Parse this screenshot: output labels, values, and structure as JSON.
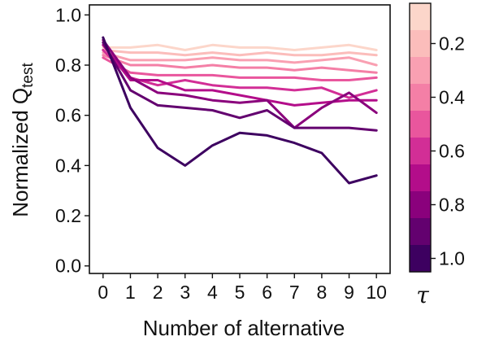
{
  "chart_data": {
    "type": "line",
    "title": "",
    "xlabel": "Number of alternative",
    "ylabel": "Normalized Q",
    "ylabel_subscript": "test",
    "x": [
      0,
      1,
      2,
      3,
      4,
      5,
      6,
      7,
      8,
      9,
      10
    ],
    "xlim": [
      -0.5,
      10.5
    ],
    "ylim": [
      -0.03,
      1.04
    ],
    "yticks": [
      0.0,
      0.2,
      0.4,
      0.6,
      0.8,
      1.0
    ],
    "ytick_labels": [
      "0.0",
      "0.2",
      "0.4",
      "0.6",
      "0.8",
      "1.0"
    ],
    "xtick_labels": [
      "0",
      "1",
      "2",
      "3",
      "4",
      "5",
      "6",
      "7",
      "8",
      "9",
      "10"
    ],
    "grid": false,
    "colorbar": {
      "label": "τ",
      "range": [
        0.05,
        1.05
      ],
      "ticks": [
        0.2,
        0.4,
        0.6,
        0.8,
        1.0
      ],
      "tick_labels": [
        "0.2",
        "0.4",
        "0.6",
        "0.8",
        "1.0"
      ],
      "levels": [
        0.1,
        0.2,
        0.3,
        0.4,
        0.5,
        0.6,
        0.7,
        0.8,
        0.9,
        1.0
      ],
      "colors": [
        "#fcd6ca",
        "#fbbdbb",
        "#f9a0b2",
        "#f47fa6",
        "#e9569d",
        "#d22e96",
        "#b30d8a",
        "#8a017c",
        "#63016f",
        "#3d0060"
      ]
    },
    "series": [
      {
        "tau": 0.1,
        "color": "#fcd6ca",
        "values": [
          0.87,
          0.87,
          0.88,
          0.86,
          0.88,
          0.87,
          0.87,
          0.86,
          0.87,
          0.88,
          0.86
        ]
      },
      {
        "tau": 0.2,
        "color": "#fbbdbb",
        "values": [
          0.86,
          0.85,
          0.85,
          0.84,
          0.85,
          0.84,
          0.85,
          0.84,
          0.84,
          0.85,
          0.84
        ]
      },
      {
        "tau": 0.3,
        "color": "#f9a0b2",
        "values": [
          0.85,
          0.82,
          0.82,
          0.82,
          0.83,
          0.82,
          0.82,
          0.81,
          0.82,
          0.83,
          0.8
        ]
      },
      {
        "tau": 0.4,
        "color": "#f47fa6",
        "values": [
          0.84,
          0.8,
          0.8,
          0.79,
          0.8,
          0.79,
          0.79,
          0.78,
          0.79,
          0.78,
          0.77
        ]
      },
      {
        "tau": 0.5,
        "color": "#e9569d",
        "values": [
          0.83,
          0.77,
          0.76,
          0.76,
          0.76,
          0.75,
          0.75,
          0.75,
          0.74,
          0.74,
          0.75
        ]
      },
      {
        "tau": 0.6,
        "color": "#d22e96",
        "values": [
          0.86,
          0.75,
          0.72,
          0.74,
          0.72,
          0.71,
          0.71,
          0.7,
          0.71,
          0.67,
          0.7
        ]
      },
      {
        "tau": 0.7,
        "color": "#b30d8a",
        "values": [
          0.88,
          0.74,
          0.74,
          0.7,
          0.7,
          0.68,
          0.66,
          0.64,
          0.65,
          0.66,
          0.66
        ]
      },
      {
        "tau": 0.8,
        "color": "#8a017c",
        "values": [
          0.9,
          0.75,
          0.69,
          0.68,
          0.66,
          0.65,
          0.66,
          0.55,
          0.63,
          0.69,
          0.61
        ]
      },
      {
        "tau": 0.9,
        "color": "#63016f",
        "values": [
          0.89,
          0.7,
          0.64,
          0.63,
          0.62,
          0.59,
          0.62,
          0.55,
          0.55,
          0.55,
          0.54
        ]
      },
      {
        "tau": 1.0,
        "color": "#3d0060",
        "values": [
          0.91,
          0.63,
          0.47,
          0.4,
          0.48,
          0.53,
          0.52,
          0.49,
          0.45,
          0.33,
          0.36
        ]
      }
    ]
  }
}
